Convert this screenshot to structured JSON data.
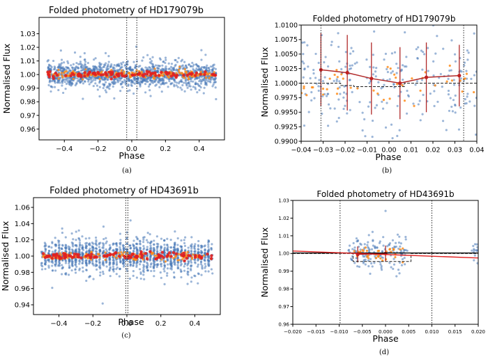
{
  "chart_data": [
    {
      "panel": "(a)",
      "type": "scatter",
      "title": "Folded photometry of HD179079b",
      "xlabel": "Phase",
      "ylabel": "Normalised Flux",
      "xlim": [
        -0.55,
        0.55
      ],
      "ylim": [
        0.952,
        1.042
      ],
      "xticks": [
        -0.4,
        -0.2,
        0.0,
        0.2,
        0.4
      ],
      "xtick_labels": [
        "−0.4",
        "−0.2",
        "0.0",
        "0.2",
        "0.4"
      ],
      "yticks": [
        0.96,
        0.97,
        0.98,
        0.99,
        1.0,
        1.01,
        1.02,
        1.03
      ],
      "ytick_labels": [
        "0.96",
        "0.97",
        "0.98",
        "0.99",
        "1.00",
        "1.01",
        "1.02",
        "1.03"
      ],
      "grid": false,
      "vlines": [
        -0.03,
        0.03
      ],
      "series": [
        {
          "role": "raw",
          "color": "#4a7ab8",
          "x_range": [
            -0.5,
            0.5
          ],
          "center": 1.0,
          "spread": 0.0045,
          "count": 1400
        },
        {
          "role": "binned",
          "color": "#ff8c1a",
          "x_range": [
            -0.5,
            0.5
          ],
          "center": 1.0,
          "spread": 0.0015,
          "count": 200
        },
        {
          "role": "binned-mean",
          "color": "#e02020",
          "x_range": [
            -0.5,
            0.5
          ],
          "center": 1.0,
          "spread": 0.0012,
          "count": 100
        }
      ]
    },
    {
      "panel": "(b)",
      "type": "scatter",
      "title": "Folded photometry of HD179079b",
      "xlabel": "Phase",
      "ylabel": "Normalised Flux",
      "xlim": [
        -0.04,
        0.04
      ],
      "ylim": [
        0.99,
        1.01
      ],
      "xticks": [
        -0.04,
        -0.03,
        -0.02,
        -0.01,
        0.0,
        0.01,
        0.02,
        0.03,
        0.04
      ],
      "xtick_labels": [
        "−0.04",
        "−0.03",
        "−0.02",
        "−0.01",
        "0.00",
        "0.01",
        "0.02",
        "0.03",
        "0.04"
      ],
      "yticks": [
        0.99,
        0.9925,
        0.995,
        0.9975,
        1.0,
        1.0025,
        1.005,
        1.0075,
        1.01
      ],
      "ytick_labels": [
        "0.9900",
        "0.9925",
        "0.9950",
        "0.9975",
        "1.0000",
        "1.0025",
        "1.0050",
        "1.0075",
        "1.0100"
      ],
      "grid": false,
      "vlines": [
        -0.031,
        0.034
      ],
      "series": [
        {
          "role": "raw",
          "color": "#4a7ab8",
          "x_range": [
            -0.04,
            0.04
          ],
          "center": 1.0,
          "spread": 0.0045,
          "count": 260
        },
        {
          "role": "binned",
          "color": "#ff8c1a",
          "x_range": [
            -0.04,
            0.04
          ],
          "center": 1.0,
          "spread": 0.0015,
          "count": 45
        },
        {
          "role": "binned-mean",
          "color": "#e02020",
          "points": [
            [
              -0.031,
              1.0023
            ],
            [
              -0.019,
              1.0018
            ],
            [
              -0.008,
              1.0008
            ],
            [
              0.005,
              1.0
            ],
            [
              0.017,
              1.001
            ],
            [
              0.032,
              1.0013
            ]
          ],
          "yerr": [
            0.0063,
            0.0065,
            0.0062,
            0.0062,
            0.006,
            0.0053
          ]
        }
      ],
      "model": {
        "color": "#222222",
        "style": "dashed",
        "points": [
          [
            -0.04,
            1.0
          ],
          [
            -0.022,
            1.0
          ],
          [
            -0.022,
            0.9996
          ],
          [
            -0.016,
            0.9996
          ],
          [
            -0.016,
            0.9994
          ],
          [
            0.007,
            0.9994
          ],
          [
            0.007,
            1.0
          ],
          [
            0.04,
            1.0
          ]
        ]
      }
    },
    {
      "panel": "(c)",
      "type": "scatter",
      "title": "Folded photometry of HD43691b",
      "xlabel": "Phase",
      "ylabel": "Normalised Flux",
      "xlim": [
        -0.55,
        0.55
      ],
      "ylim": [
        0.928,
        1.072
      ],
      "xticks": [
        -0.4,
        -0.2,
        0.0,
        0.2,
        0.4
      ],
      "xtick_labels": [
        "−0.4",
        "−0.2",
        "0.0",
        "0.2",
        "0.4"
      ],
      "yticks": [
        0.94,
        0.96,
        0.98,
        1.0,
        1.02,
        1.04,
        1.06
      ],
      "ytick_labels": [
        "0.94",
        "0.96",
        "0.98",
        "1.00",
        "1.02",
        "1.04",
        "1.06"
      ],
      "grid": false,
      "vlines": [
        -0.006,
        0.006
      ],
      "series": [
        {
          "role": "raw",
          "color": "#4a7ab8",
          "x_range": [
            -0.5,
            0.5
          ],
          "center": 1.0,
          "spread": 0.01,
          "count": 1400,
          "striped": true
        },
        {
          "role": "binned",
          "color": "#ff8c1a",
          "x_range": [
            -0.5,
            0.5
          ],
          "center": 1.0,
          "spread": 0.0025,
          "count": 160
        },
        {
          "role": "binned-mean",
          "color": "#e02020",
          "x_range": [
            -0.5,
            0.5
          ],
          "center": 1.0,
          "spread": 0.002,
          "count": 110
        }
      ]
    },
    {
      "panel": "(d)",
      "type": "scatter",
      "title": "Folded photometry of HD43691b",
      "xlabel": "Phase",
      "ylabel": "Normalised Flux",
      "xlim": [
        -0.02,
        0.02
      ],
      "ylim": [
        0.96,
        1.03
      ],
      "xticks": [
        -0.02,
        -0.015,
        -0.01,
        -0.005,
        0.0,
        0.005,
        0.01,
        0.015,
        0.02
      ],
      "xtick_labels": [
        "−0.020",
        "−0.015",
        "−0.010",
        "−0.005",
        "0.000",
        "0.005",
        "0.010",
        "0.015",
        "0.020"
      ],
      "yticks": [
        0.96,
        0.97,
        0.98,
        0.99,
        1.0,
        1.01,
        1.02,
        1.03
      ],
      "ytick_labels": [
        "0.96",
        "0.97",
        "0.98",
        "0.99",
        "1.00",
        "1.01",
        "1.02",
        "1.03"
      ],
      "grid": false,
      "vlines": [
        -0.0098,
        0.01
      ],
      "series": [
        {
          "role": "raw",
          "color": "#4a7ab8",
          "x_range": [
            -0.008,
            0.0048
          ],
          "center": 1.0,
          "spread": 0.0045,
          "count": 150
        },
        {
          "role": "raw-edge",
          "color": "#4a7ab8",
          "x_range": [
            0.0185,
            0.02
          ],
          "center": 1.0,
          "spread": 0.003,
          "count": 14
        },
        {
          "role": "binned",
          "color": "#ff8c1a",
          "x_range": [
            -0.007,
            0.004
          ],
          "center": 1.0,
          "spread": 0.0025,
          "count": 35
        },
        {
          "role": "binned-mean",
          "color": "#e02020",
          "points": [
            [
              -0.006,
              0.9995
            ],
            [
              0.0,
              1.0
            ]
          ],
          "yerr": [
            0.0045,
            0.0045
          ]
        }
      ],
      "model": {
        "color": "#222222",
        "style": "dashed",
        "points": [
          [
            -0.02,
            1.0
          ],
          [
            -0.007,
            1.0
          ],
          [
            -0.007,
            0.9955
          ],
          [
            0.0055,
            0.9955
          ],
          [
            0.0055,
            1.0
          ],
          [
            0.02,
            1.0
          ]
        ]
      },
      "fit_lines": [
        {
          "color": "#000000",
          "points": [
            [
              -0.02,
              1.0003
            ],
            [
              0.02,
              1.0003
            ]
          ]
        },
        {
          "color": "#e02020",
          "points": [
            [
              -0.02,
              1.0014
            ],
            [
              0.02,
              0.9975
            ]
          ]
        }
      ]
    }
  ]
}
